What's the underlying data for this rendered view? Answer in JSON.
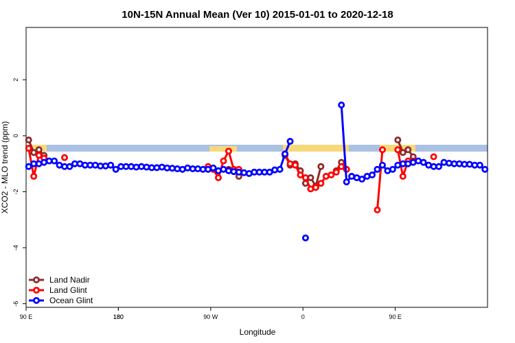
{
  "chart_data": {
    "type": "line",
    "title": "10N-15N Annual Mean (Ver 10)   2015-01-01 to 2020-12-18",
    "xlabel": "Longitude",
    "ylabel": "XCO2 - MLO trend (ppm)",
    "xlim": [
      90,
      540
    ],
    "ylim": [
      -6.13,
      3.87
    ],
    "xticks": [
      {
        "value": 90,
        "label": "90 E"
      },
      180,
      {
        "value": 270,
        "label": "90 W"
      },
      {
        "value": 360,
        "label": "0"
      },
      {
        "value": 450,
        "label": "90 E"
      },
      180.0001
    ],
    "yticks": [
      2,
      0,
      -2,
      -4,
      -6
    ],
    "legend": "bottom-left",
    "x": [
      92.5,
      97.5,
      102.5,
      107.5,
      112.5,
      117.5,
      122.5,
      127.5,
      132.5,
      137.5,
      142.5,
      147.5,
      152.5,
      157.5,
      162.5,
      167.5,
      172.5,
      177.5,
      182.5,
      187.5,
      192.5,
      197.5,
      202.5,
      207.5,
      212.5,
      217.5,
      222.5,
      227.5,
      232.5,
      237.5,
      242.5,
      247.5,
      252.5,
      257.5,
      262.5,
      267.5,
      272.5,
      277.5,
      282.5,
      287.5,
      292.5,
      297.5,
      302.5,
      307.5,
      312.5,
      317.5,
      322.5,
      327.5,
      332.5,
      337.5,
      342.5,
      347.5,
      352.5,
      357.5,
      362.5,
      367.5,
      372.5,
      377.5,
      382.5,
      387.5,
      392.5,
      397.5,
      402.5,
      407.5,
      412.5,
      417.5,
      422.5,
      427.5,
      432.5,
      437.5,
      442.5,
      447.5,
      452.5,
      457.5,
      462.5,
      467.5,
      472.5,
      477.5,
      482.5,
      487.5,
      492.5,
      497.5,
      502.5,
      507.5,
      512.5,
      517.5,
      522.5,
      527.5,
      532.5,
      537.5
    ],
    "series": [
      {
        "name": "Land Nadir",
        "color": "#8b2a2a",
        "values": [
          -0.15,
          -0.6,
          -0.5,
          -0.7,
          null,
          null,
          null,
          null,
          null,
          null,
          null,
          null,
          null,
          null,
          null,
          null,
          null,
          null,
          null,
          null,
          null,
          null,
          null,
          null,
          null,
          null,
          null,
          null,
          null,
          null,
          null,
          null,
          null,
          null,
          null,
          null,
          null,
          null,
          null,
          -1.2,
          -1.2,
          -1.45,
          null,
          null,
          null,
          null,
          null,
          null,
          null,
          null,
          -0.7,
          -1.05,
          -1,
          -1.25,
          -1.7,
          -1.5,
          -1.8,
          -1.1,
          null,
          null,
          -1.25,
          -0.95,
          -1.2,
          null,
          null,
          null,
          null,
          null,
          null,
          null,
          null,
          null,
          -0.15,
          -0.6,
          -0.5,
          -0.75,
          null,
          null,
          null,
          null,
          null,
          null,
          null,
          null,
          null,
          null,
          null,
          null,
          null,
          null
        ]
      },
      {
        "name": "Land Glint",
        "color": "#ff0000",
        "values": [
          -0.45,
          -1.45,
          -0.7,
          -0.8,
          null,
          null,
          null,
          -0.78,
          null,
          null,
          null,
          null,
          null,
          null,
          null,
          null,
          null,
          null,
          null,
          null,
          null,
          null,
          null,
          null,
          null,
          null,
          null,
          null,
          null,
          null,
          null,
          null,
          null,
          null,
          null,
          -1.1,
          -1.2,
          -1.5,
          -0.9,
          -0.55,
          -1.2,
          -1.2,
          null,
          null,
          null,
          null,
          null,
          null,
          null,
          null,
          -0.65,
          -1,
          -1.05,
          -1.4,
          -1.5,
          -1.9,
          -1.85,
          -1.7,
          -1.45,
          -1.4,
          -1.3,
          -1.1,
          -1.2,
          null,
          null,
          null,
          null,
          null,
          -2.65,
          -0.5,
          null,
          null,
          -0.5,
          -1.45,
          -0.9,
          -0.9,
          null,
          null,
          null,
          -0.75,
          null,
          null,
          null,
          null,
          null,
          null,
          null,
          null,
          null,
          null
        ]
      },
      {
        "name": "Ocean Glint",
        "color": "#0000ff",
        "values": [
          -1.1,
          -1,
          -1,
          -0.95,
          -0.9,
          -0.9,
          -1.05,
          -1.1,
          -1.1,
          -1,
          -1,
          -1.05,
          -1.05,
          -1.05,
          -1.08,
          -1.08,
          -1.05,
          -1.2,
          -1.1,
          -1.1,
          -1.1,
          -1.12,
          -1.1,
          -1.12,
          -1.14,
          -1.14,
          -1.12,
          -1.15,
          -1.16,
          -1.18,
          -1.2,
          -1.15,
          -1.18,
          -1.18,
          -1.2,
          -1.2,
          -1.15,
          -1.25,
          -1.2,
          -1.25,
          -1.28,
          -1.3,
          -1.32,
          -1.35,
          -1.3,
          -1.3,
          -1.3,
          -1.3,
          -1.22,
          -1.2,
          -0.65,
          -0.2,
          null,
          null,
          -3.65,
          null,
          null,
          null,
          null,
          null,
          null,
          1.1,
          -1.65,
          -1.45,
          -1.5,
          -1.55,
          -1.45,
          -1.4,
          -1.2,
          -1.05,
          -1.25,
          -1.2,
          -1.05,
          -1,
          -1,
          -0.95,
          -0.9,
          -0.95,
          -1.05,
          -1.1,
          -1.1,
          -0.95,
          -0.98,
          -1,
          -1,
          -1.02,
          -1.02,
          -1.05,
          -1.05,
          -1.2
        ]
      }
    ]
  }
}
